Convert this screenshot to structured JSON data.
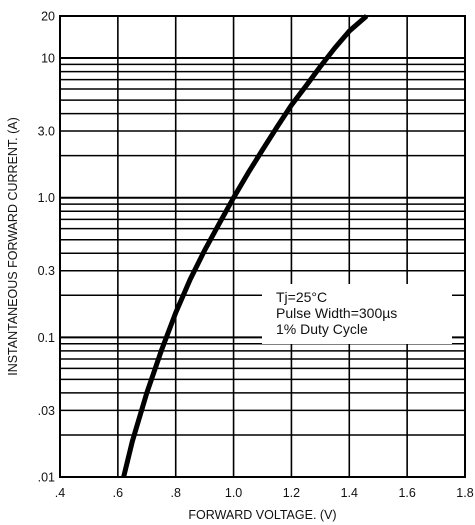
{
  "chart_data": {
    "type": "line",
    "xlabel": "FORWARD VOLTAGE. (V)",
    "ylabel": "INSTANTANEOUS FORWARD CURRENT. (A)",
    "x_scale": "linear",
    "y_scale": "log",
    "xlim": [
      0.4,
      1.8
    ],
    "ylim": [
      0.01,
      20
    ],
    "x_ticks": [
      {
        "value": 0.4,
        "label": ".4"
      },
      {
        "value": 0.6,
        "label": ".6"
      },
      {
        "value": 0.8,
        "label": ".8"
      },
      {
        "value": 1.0,
        "label": "1.0"
      },
      {
        "value": 1.2,
        "label": "1.2"
      },
      {
        "value": 1.4,
        "label": "1.4"
      },
      {
        "value": 1.6,
        "label": "1.6"
      },
      {
        "value": 1.8,
        "label": "1.8"
      }
    ],
    "y_ticks": [
      {
        "value": 0.01,
        "label": ".01"
      },
      {
        "value": 0.03,
        "label": ".03"
      },
      {
        "value": 0.1,
        "label": "0.1"
      },
      {
        "value": 0.3,
        "label": "0.3"
      },
      {
        "value": 1,
        "label": "1.0"
      },
      {
        "value": 3,
        "label": "3.0"
      },
      {
        "value": 10,
        "label": "10"
      },
      {
        "value": 20,
        "label": "20"
      }
    ],
    "grid": true,
    "series": [
      {
        "x": [
          0.62,
          0.65,
          0.7,
          0.75,
          0.8,
          0.85,
          0.9,
          0.95,
          1.0,
          1.05,
          1.1,
          1.15,
          1.2,
          1.25,
          1.3,
          1.35,
          1.4,
          1.46
        ],
        "y": [
          0.01,
          0.018,
          0.04,
          0.08,
          0.15,
          0.26,
          0.42,
          0.65,
          1.0,
          1.5,
          2.2,
          3.2,
          4.6,
          6.3,
          8.7,
          11.8,
          15.6,
          20
        ]
      }
    ],
    "annotation": {
      "lines": [
        "Tj=25°C",
        "Pulse Width=300µs",
        "1% Duty Cycle"
      ],
      "position": "lower-right"
    }
  }
}
